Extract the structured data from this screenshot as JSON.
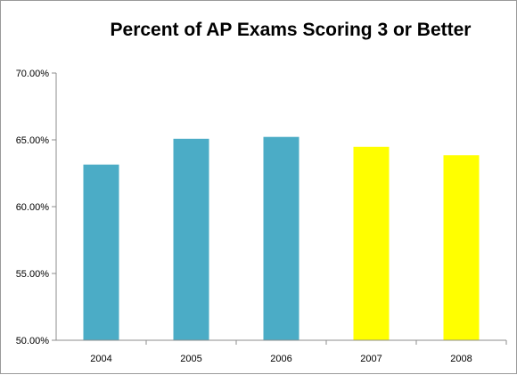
{
  "chart_data": {
    "type": "bar",
    "title": "Percent of  AP Exams Scoring 3 or Better",
    "xlabel": "",
    "ylabel": "",
    "categories": [
      "2004",
      "2005",
      "2006",
      "2007",
      "2008"
    ],
    "values": [
      63.15,
      65.08,
      65.22,
      64.48,
      63.85
    ],
    "bar_colors": [
      "#4bacc6",
      "#4bacc6",
      "#4bacc6",
      "#ffff00",
      "#ffff00"
    ],
    "ylim": [
      50,
      70
    ],
    "y_ticks": [
      "70.00%",
      "65.00%",
      "60.00%",
      "55.00%",
      "50.00%"
    ],
    "y_tick_values": [
      70,
      65,
      60,
      55,
      50
    ],
    "grid": false,
    "legend": "none"
  }
}
